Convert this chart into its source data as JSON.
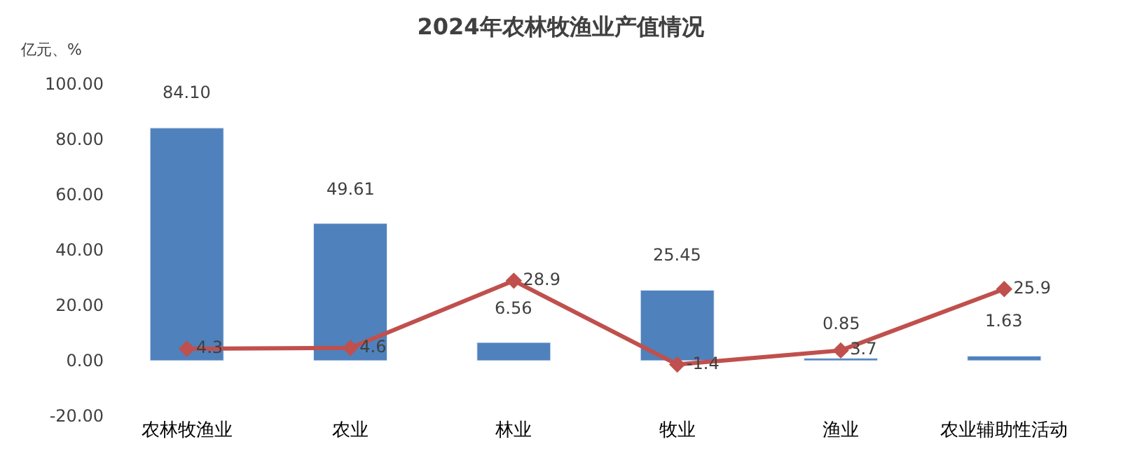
{
  "chart_data": {
    "type": "bar",
    "title": "2024年农林牧渔业产值情况",
    "ylabel": "亿元、%",
    "categories": [
      "农林牧渔业",
      "农业",
      "林业",
      "牧业",
      "渔业",
      "农业辅助性活动"
    ],
    "series": [
      {
        "color": "#4f81bd",
        "values": [
          84.1,
          49.61,
          6.56,
          25.45,
          0.85,
          1.63
        ],
        "value_labels": [
          "84.10",
          "49.61",
          "6.56",
          "25.45",
          "0.85",
          "1.63"
        ]
      },
      {
        "type": "line",
        "color": "#c0504d",
        "marker": "diamond",
        "values": [
          4.3,
          4.6,
          28.9,
          -1.4,
          3.7,
          25.9
        ],
        "value_labels": [
          "4.3",
          "4.6",
          "28.9",
          "-1.4",
          "3.7",
          "25.9"
        ]
      }
    ],
    "ylim": [
      -20,
      100
    ],
    "yticks": [
      {
        "value": -20,
        "label": "-20.00"
      },
      {
        "value": 0,
        "label": "0.00"
      },
      {
        "value": 20,
        "label": "20.00"
      },
      {
        "value": 40,
        "label": "40.00"
      },
      {
        "value": 60,
        "label": "60.00"
      },
      {
        "value": 80,
        "label": "80.00"
      },
      {
        "value": 100,
        "label": "100.00"
      }
    ],
    "legend": false
  }
}
